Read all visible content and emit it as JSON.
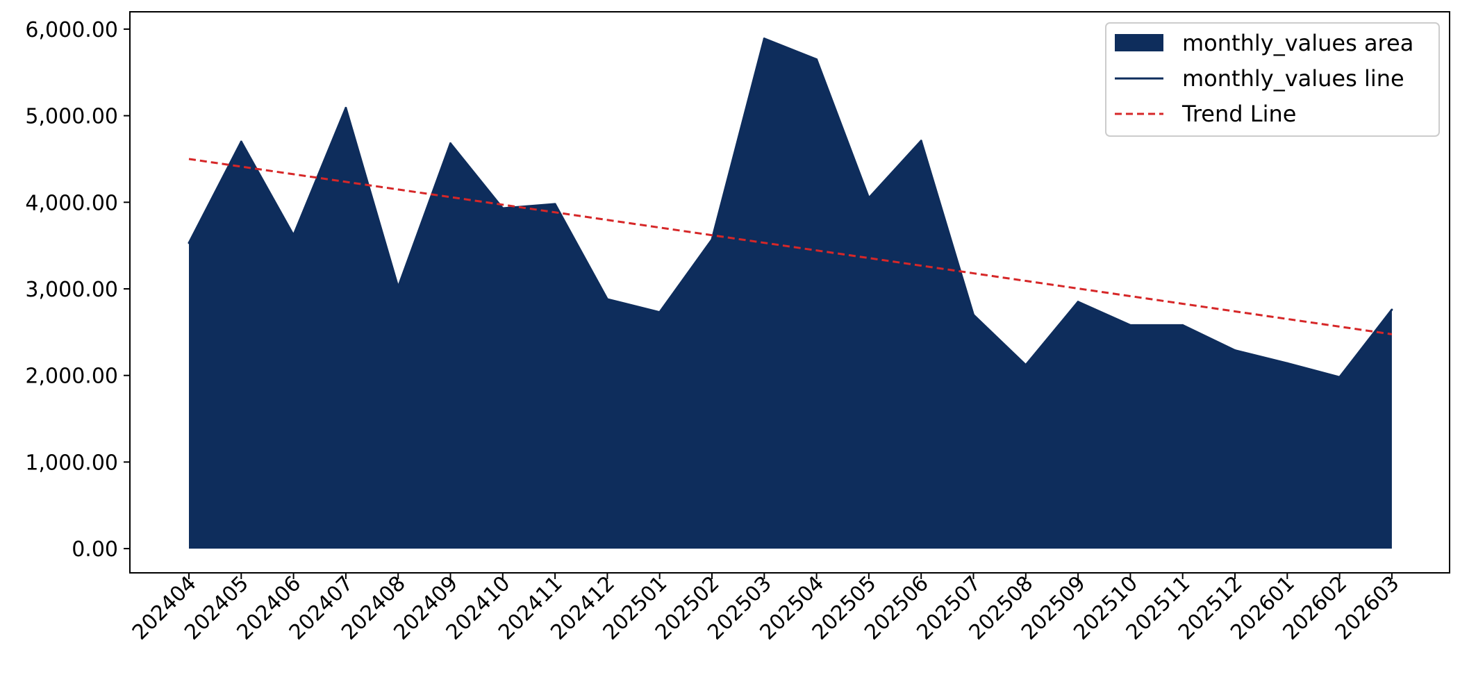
{
  "chart_data": {
    "type": "area",
    "categories": [
      "202404",
      "202405",
      "202406",
      "202407",
      "202408",
      "202409",
      "202410",
      "202411",
      "202412",
      "202501",
      "202502",
      "202503",
      "202504",
      "202505",
      "202506",
      "202507",
      "202508",
      "202509",
      "202510",
      "202511",
      "202512",
      "202601",
      "202602",
      "202603"
    ],
    "series": [
      {
        "name": "monthly_values area",
        "kind": "area",
        "values": [
          3530,
          4700,
          3620,
          5090,
          3020,
          4680,
          3930,
          3980,
          2880,
          2730,
          3570,
          5890,
          5650,
          4050,
          4710,
          2700,
          2120,
          2850,
          2580,
          2580,
          2290,
          2140,
          1980,
          2760
        ]
      },
      {
        "name": "monthly_values line",
        "kind": "line",
        "values": [
          3530,
          4700,
          3620,
          5090,
          3020,
          4680,
          3930,
          3980,
          2880,
          2730,
          3570,
          5890,
          5650,
          4050,
          4710,
          2700,
          2120,
          2850,
          2580,
          2580,
          2290,
          2140,
          1980,
          2760
        ]
      },
      {
        "name": "Trend Line",
        "kind": "trend",
        "values": [
          4500,
          4412,
          4324,
          4236,
          4148,
          4060,
          3972,
          3884,
          3796,
          3708,
          3620,
          3532,
          3444,
          3356,
          3268,
          3180,
          3092,
          3004,
          2916,
          2828,
          2740,
          2652,
          2564,
          2476
        ]
      }
    ],
    "y_ticks": [
      "0.00",
      "1,000.00",
      "2,000.00",
      "3,000.00",
      "4,000.00",
      "5,000.00",
      "6,000.00"
    ],
    "ylim": [
      -280,
      6200
    ],
    "title": "",
    "xlabel": "",
    "ylabel": "",
    "grid": false,
    "legend_position": "top-right",
    "colors": {
      "area": "#0e2d5c",
      "line": "#0e2d5c",
      "trend": "#d62728"
    }
  }
}
